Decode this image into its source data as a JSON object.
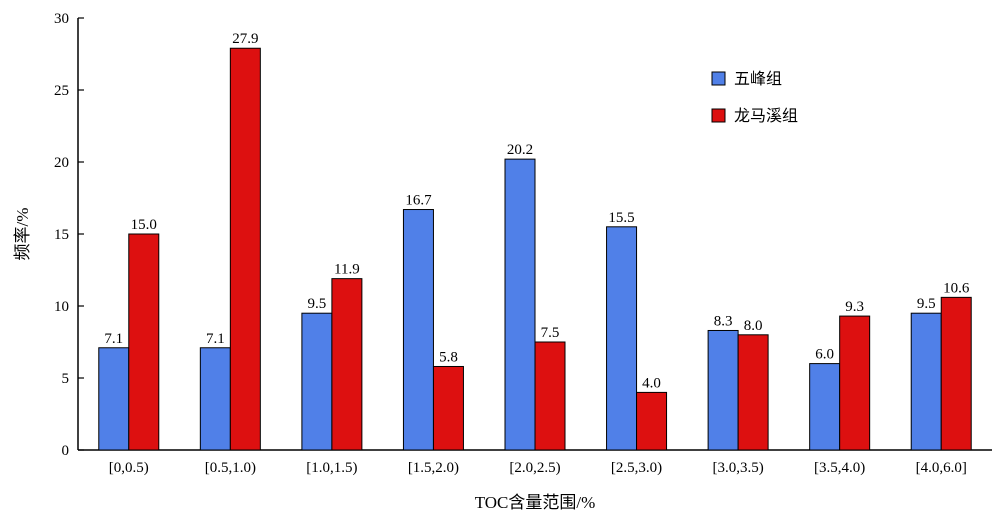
{
  "chart_data": {
    "type": "bar",
    "title": "",
    "xlabel": "TOC含量范围/%",
    "ylabel": "频率/%",
    "ylim": [
      0,
      30
    ],
    "yticks": [
      0,
      5,
      10,
      15,
      20,
      25,
      30
    ],
    "categories": [
      "[0,0.5)",
      "[0.5,1.0)",
      "[1.0,1.5)",
      "[1.5,2.0)",
      "[2.0,2.5)",
      "[2.5,3.0)",
      "[3.0,3.5)",
      "[3.5,4.0)",
      "[4.0,6.0]"
    ],
    "series": [
      {
        "name": "五峰组",
        "color": "#5080e8",
        "values": [
          7.1,
          7.1,
          9.5,
          16.7,
          20.2,
          15.5,
          8.3,
          6.0,
          9.5
        ],
        "labels": [
          "7.1",
          "7.1",
          "9.5",
          "16.7",
          "20.2",
          "15.5",
          "8.3",
          "6.0",
          "9.5"
        ]
      },
      {
        "name": "龙马溪组",
        "color": "#dd1010",
        "values": [
          15.0,
          27.9,
          11.9,
          5.8,
          7.5,
          4.0,
          8.0,
          9.3,
          10.6
        ],
        "labels": [
          "15.0",
          "27.9",
          "11.9",
          "5.8",
          "7.5",
          "4.0",
          "8.0",
          "9.3",
          "10.6"
        ]
      }
    ],
    "legend_position": "top-right",
    "grid": false
  }
}
